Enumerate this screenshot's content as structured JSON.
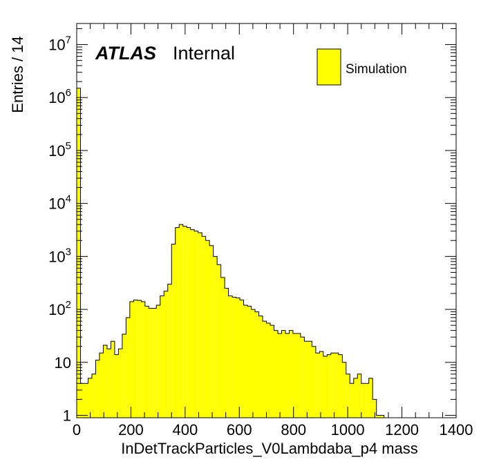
{
  "chart_data": {
    "type": "bar",
    "style": "histogram-step-filled",
    "xlabel": "InDetTrackParticles_V0Lambdaba_p4 mass",
    "ylabel": "Entries / 14",
    "xlim": [
      0,
      1400
    ],
    "ylim": [
      0.9,
      25000000
    ],
    "y_scale": "log",
    "bin_width": 14,
    "fill_color": "#ffff00",
    "line_color": "#000000",
    "x_ticks": [
      {
        "value": 0,
        "label": "0"
      },
      {
        "value": 200,
        "label": "200"
      },
      {
        "value": 400,
        "label": "400"
      },
      {
        "value": 600,
        "label": "600"
      },
      {
        "value": 800,
        "label": "800"
      },
      {
        "value": 1000,
        "label": "1000"
      },
      {
        "value": 1200,
        "label": "1200"
      },
      {
        "value": 1400,
        "label": "1400"
      }
    ],
    "y_ticks": [
      {
        "value": 1,
        "base": "1",
        "exp": ""
      },
      {
        "value": 10,
        "base": "10",
        "exp": ""
      },
      {
        "value": 100,
        "base": "10",
        "exp": "2"
      },
      {
        "value": 1000,
        "base": "10",
        "exp": "3"
      },
      {
        "value": 10000,
        "base": "10",
        "exp": "4"
      },
      {
        "value": 100000,
        "base": "10",
        "exp": "5"
      },
      {
        "value": 1000000,
        "base": "10",
        "exp": "6"
      },
      {
        "value": 10000000,
        "base": "10",
        "exp": "7"
      }
    ],
    "values": [
      1500000,
      4,
      4,
      5,
      6,
      11,
      15,
      21,
      18,
      25,
      14,
      18,
      34,
      70,
      140,
      150,
      148,
      140,
      115,
      105,
      105,
      120,
      180,
      220,
      300,
      1700,
      3500,
      4000,
      3700,
      3500,
      3200,
      3000,
      2800,
      2400,
      2000,
      1600,
      1000,
      700,
      400,
      250,
      180,
      170,
      165,
      150,
      120,
      115,
      100,
      90,
      75,
      60,
      55,
      50,
      40,
      35,
      40,
      35,
      40,
      35,
      35,
      30,
      25,
      25,
      20,
      15,
      16,
      13,
      14,
      15,
      15,
      14,
      10,
      6,
      4,
      5,
      6,
      4,
      4,
      5,
      2,
      1,
      1,
      0,
      0,
      0,
      0,
      0,
      0,
      0,
      0,
      0,
      0,
      0,
      0,
      0
    ],
    "legend": [
      {
        "label": "Simulation",
        "color": "#ffff00"
      }
    ],
    "legend_position": "top-right",
    "annotations": {
      "atlas": "ATLAS",
      "status": "Internal"
    }
  }
}
